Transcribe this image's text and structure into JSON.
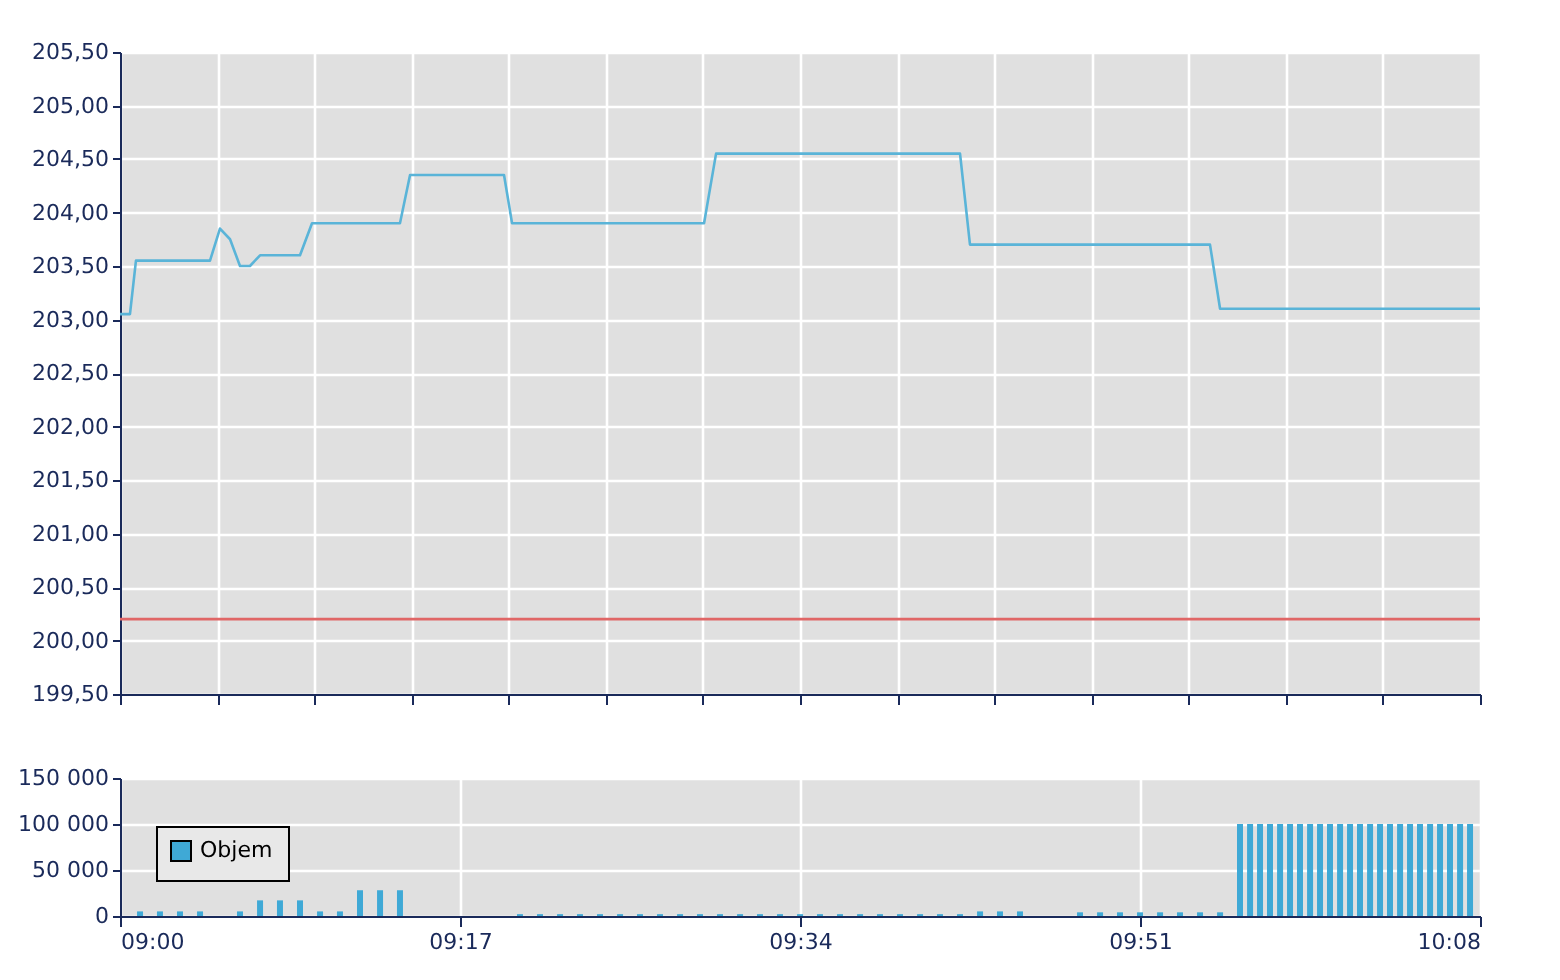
{
  "chart_data": [
    {
      "type": "line",
      "xlim": [
        9,
        10.1333
      ],
      "xticks": [
        {
          "value": 9,
          "label": null
        },
        {
          "value": 9.081,
          "label": null
        },
        {
          "value": 9.1619,
          "label": null
        },
        {
          "value": 9.2429,
          "label": null
        },
        {
          "value": 9.3238,
          "label": null
        },
        {
          "value": 9.4048,
          "label": null
        },
        {
          "value": 9.4857,
          "label": null
        },
        {
          "value": 9.5667,
          "label": null
        },
        {
          "value": 9.6476,
          "label": null
        },
        {
          "value": 9.7286,
          "label": null
        },
        {
          "value": 9.8095,
          "label": null
        },
        {
          "value": 9.8905,
          "label": null
        },
        {
          "value": 9.9714,
          "label": null
        },
        {
          "value": 10.0524,
          "label": null
        },
        {
          "value": 10.1333,
          "label": null
        }
      ],
      "ylim": [
        199.5,
        205.5
      ],
      "yticks": [
        {
          "value": 199.5,
          "label": "199,50"
        },
        {
          "value": 200,
          "label": "200,00"
        },
        {
          "value": 200.5,
          "label": "200,50"
        },
        {
          "value": 201,
          "label": "201,00"
        },
        {
          "value": 201.5,
          "label": "201,50"
        },
        {
          "value": 202,
          "label": "202,00"
        },
        {
          "value": 202.5,
          "label": "202,50"
        },
        {
          "value": 203,
          "label": "203,00"
        },
        {
          "value": 203.5,
          "label": "203,50"
        },
        {
          "value": 204,
          "label": "204,00"
        },
        {
          "value": 204.5,
          "label": "204,50"
        },
        {
          "value": 205,
          "label": "205,00"
        },
        {
          "value": 205.5,
          "label": "205,50"
        }
      ],
      "grid": true,
      "tick_labels": "y",
      "ref_lines": [
        {
          "axis": "y",
          "value": 200.2,
          "color": "#e06666"
        }
      ],
      "series": [
        {
          "color": "#5ab4d8",
          "x": [
            9,
            9.0083,
            9.0133,
            9.075,
            9.0833,
            9.0917,
            9.1,
            9.1083,
            9.1167,
            9.15,
            9.16,
            9.2333,
            9.2417,
            9.32,
            9.3267,
            9.4867,
            9.4967,
            9.7,
            9.7083,
            9.9083,
            9.9167,
            10.1333
          ],
          "values": [
            203.05,
            203.05,
            203.55,
            203.55,
            203.85,
            203.75,
            203.5,
            203.5,
            203.6,
            203.6,
            203.9,
            203.9,
            204.35,
            204.35,
            203.9,
            203.9,
            204.55,
            204.55,
            203.7,
            203.7,
            203.1,
            203.1
          ]
        }
      ]
    },
    {
      "type": "bar",
      "xlim": [
        9,
        10.1333
      ],
      "xticks": [
        {
          "value": 9,
          "label": "09:00"
        },
        {
          "value": 9.2833,
          "label": "09:17"
        },
        {
          "value": 9.5667,
          "label": "09:34"
        },
        {
          "value": 9.85,
          "label": "09:51"
        },
        {
          "value": 10.1333,
          "label": "10:08"
        }
      ],
      "ylim": [
        0,
        150000
      ],
      "yticks": [
        {
          "value": 0,
          "label": "0"
        },
        {
          "value": 50000,
          "label": "50 000"
        },
        {
          "value": 100000,
          "label": "100 000"
        },
        {
          "value": 150000,
          "label": "150 000"
        }
      ],
      "grid": true,
      "legend": "bottom left",
      "series": [
        {
          "name": "Objem",
          "color": "#3fa9d6",
          "x": [
            9.0167,
            9.0333,
            9.05,
            9.0667,
            9.1,
            9.1167,
            9.1333,
            9.15,
            9.1667,
            9.1833,
            9.2,
            9.2167,
            9.2333,
            9.3333,
            9.35,
            9.3667,
            9.3833,
            9.4,
            9.4167,
            9.4333,
            9.45,
            9.4667,
            9.4833,
            9.5,
            9.5167,
            9.5333,
            9.55,
            9.5667,
            9.5833,
            9.6,
            9.6167,
            9.6333,
            9.65,
            9.6667,
            9.6833,
            9.7,
            9.7167,
            9.7333,
            9.75,
            9.8,
            9.8167,
            9.8333,
            9.85,
            9.8667,
            9.8833,
            9.9,
            9.9167,
            9.9333,
            9.9417,
            9.95,
            9.9583,
            9.9667,
            9.975,
            9.9833,
            9.9917,
            10,
            10.0083,
            10.0167,
            10.025,
            10.0333,
            10.0417,
            10.05,
            10.0583,
            10.0667,
            10.075,
            10.0833,
            10.0917,
            10.1,
            10.1083,
            10.1167,
            10.125
          ],
          "values": [
            5000,
            5000,
            5000,
            5000,
            5000,
            17000,
            17000,
            17000,
            5000,
            5000,
            28000,
            28000,
            28000,
            2000,
            2000,
            2000,
            2000,
            2000,
            2000,
            2000,
            2000,
            2000,
            2000,
            2000,
            2000,
            2000,
            2000,
            2000,
            2000,
            2000,
            2000,
            2000,
            2000,
            2000,
            2000,
            2000,
            5000,
            5000,
            5000,
            4000,
            4000,
            4000,
            4000,
            4000,
            4000,
            4000,
            4000,
            100000,
            100000,
            100000,
            100000,
            100000,
            100000,
            100000,
            100000,
            100000,
            100000,
            100000,
            100000,
            100000,
            100000,
            100000,
            100000,
            100000,
            100000,
            100000,
            100000,
            100000,
            100000,
            100000,
            100000
          ]
        }
      ]
    }
  ]
}
